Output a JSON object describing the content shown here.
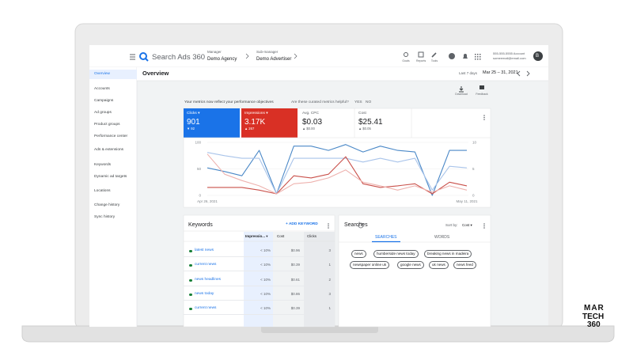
{
  "header": {
    "product": "Search Ads 360",
    "manager_label": "Manager",
    "manager": "Demo Agency",
    "submanager_label": "Sub-manager",
    "submanager": "Demo Advertiser",
    "tools": [
      "Goals",
      "Reports",
      "Tools"
    ],
    "account_id": "555-555-5555 Account",
    "account_email": "someemail@email.com",
    "avatar": "B"
  },
  "nav": [
    "Overview",
    "Accounts",
    "Campaigns",
    "Ad groups",
    "Product groups",
    "Performance center",
    "Ads & extensions",
    "Keywords",
    "Dynamic ad targets",
    "Locations",
    "Change history",
    "Sync history"
  ],
  "page": {
    "title": "Overview",
    "range_label": "Last 7 days",
    "range": "Mar 25 – 31, 2021",
    "actions": [
      "Download",
      "Feedback"
    ]
  },
  "notice": {
    "text": "Your metrics now reflect your performance objectives",
    "question": "Are these curated metrics helpful?",
    "yes": "YES",
    "no": "NO"
  },
  "metrics": [
    {
      "label": "Clicks ▾",
      "value": "901",
      "change": "▼ 92"
    },
    {
      "label": "Impressions ▾",
      "value": "3.17K",
      "change": "▲ 267"
    },
    {
      "label": "Avg. CPC",
      "value": "$0.03",
      "change": "▲ $0.00"
    },
    {
      "label": "Cost",
      "value": "$25.41",
      "change": "▲ $0.05"
    }
  ],
  "chart_data": {
    "type": "line",
    "categories": [
      "Apr 26, 2021",
      null,
      null,
      null,
      null,
      null,
      null,
      null,
      null,
      null,
      null,
      null,
      null,
      null,
      null,
      "May 11, 2021"
    ],
    "ylim": [
      0,
      100
    ],
    "yticks": [
      0,
      50,
      100
    ],
    "y2lim": [
      0,
      10
    ],
    "y2ticks": [
      0,
      5,
      10
    ],
    "grid": true,
    "series": [
      {
        "color": "#4a88c7",
        "values": [
          52,
          45,
          37,
          85,
          3,
          93,
          93,
          85,
          96,
          82,
          93,
          85,
          82,
          0,
          85,
          85
        ]
      },
      {
        "color": "#a9c4ea",
        "axis": "y2",
        "values": [
          8.1,
          7.5,
          7.0,
          7.0,
          0.3,
          7.0,
          7.0,
          7.0,
          7.0,
          6.3,
          7.0,
          6.3,
          7.0,
          1.0,
          5.5,
          5.2
        ]
      },
      {
        "color": "#c9504a",
        "values": [
          15,
          15,
          15,
          10,
          3,
          37,
          33,
          40,
          73,
          22,
          15,
          18,
          22,
          3,
          25,
          18
        ]
      },
      {
        "color": "#eeb2ae",
        "axis": "y2",
        "values": [
          7.8,
          4.0,
          2.8,
          1.8,
          0.3,
          2.2,
          2.5,
          3.3,
          4.8,
          2.5,
          1.8,
          1.0,
          1.8,
          0.6,
          1.8,
          1.0
        ]
      }
    ]
  },
  "keywords": {
    "title": "Keywords",
    "action": "+ ADD KEYWORD",
    "columns": [
      "Impressio... ▾",
      "Cost",
      "Clicks"
    ],
    "rows": [
      [
        "latest news",
        "< 10%",
        "$0.96",
        "3"
      ],
      [
        "current news",
        "< 10%",
        "$0.39",
        "1"
      ],
      [
        "news headlines",
        "< 10%",
        "$0.61",
        "2"
      ],
      [
        "news today",
        "< 10%",
        "$0.86",
        "3"
      ],
      [
        "current news",
        "< 10%",
        "$0.39",
        "1"
      ]
    ]
  },
  "searches": {
    "title": "Searches",
    "sort_label": "Sort by:",
    "sort": "Cost ▾",
    "tabs": [
      "SEARCHES",
      "WORDS"
    ],
    "terms": [
      "news",
      "humberside news today",
      "breaking news in madeira",
      "newspaper online uk",
      "google news",
      "uk news",
      "news feed"
    ]
  },
  "brand": [
    "MAR",
    "TECH",
    "360"
  ]
}
